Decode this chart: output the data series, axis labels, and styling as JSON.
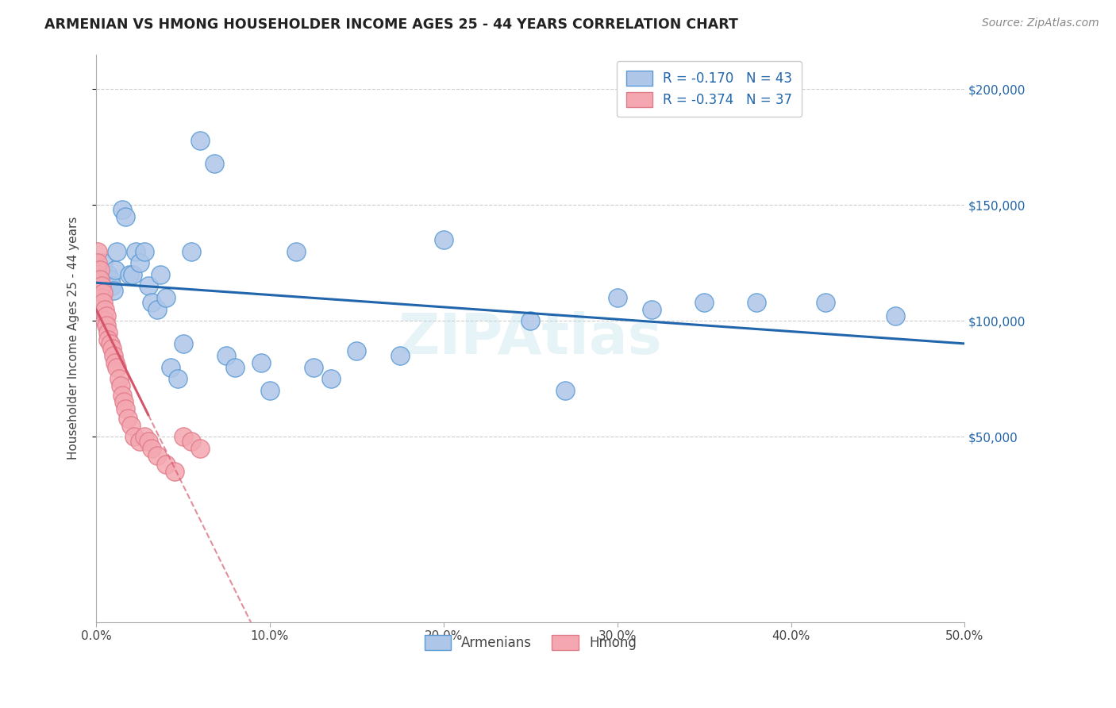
{
  "title": "ARMENIAN VS HMONG HOUSEHOLDER INCOME AGES 25 - 44 YEARS CORRELATION CHART",
  "source": "Source: ZipAtlas.com",
  "ylabel": "Householder Income Ages 25 - 44 years",
  "xlim": [
    0.0,
    0.5
  ],
  "ylim": [
    -30000,
    215000
  ],
  "yticks": [
    50000,
    100000,
    150000,
    200000
  ],
  "xticks": [
    0.0,
    0.1,
    0.2,
    0.3,
    0.4,
    0.5
  ],
  "xtick_labels": [
    "0.0%",
    "10.0%",
    "20.0%",
    "30.0%",
    "40.0%",
    "50.0%"
  ],
  "ytick_labels": [
    "$50,000",
    "$100,000",
    "$150,000",
    "$200,000"
  ],
  "armenian_color": "#aec6e8",
  "hmong_color": "#f4a7b0",
  "armenian_edge": "#5b9bd5",
  "hmong_edge": "#e07b8a",
  "blue_line_color": "#2166ac",
  "pink_line_color": "#d6546a",
  "R_armenian": -0.17,
  "N_armenian": 43,
  "R_hmong": -0.374,
  "N_hmong": 37,
  "armenian_x": [
    0.004,
    0.007,
    0.008,
    0.009,
    0.01,
    0.011,
    0.012,
    0.015,
    0.017,
    0.019,
    0.021,
    0.023,
    0.025,
    0.028,
    0.03,
    0.032,
    0.035,
    0.037,
    0.04,
    0.043,
    0.047,
    0.05,
    0.055,
    0.06,
    0.068,
    0.075,
    0.08,
    0.095,
    0.1,
    0.115,
    0.125,
    0.135,
    0.15,
    0.175,
    0.2,
    0.25,
    0.27,
    0.3,
    0.32,
    0.35,
    0.38,
    0.42,
    0.46
  ],
  "armenian_y": [
    125000,
    120000,
    118000,
    115000,
    113000,
    122000,
    130000,
    148000,
    145000,
    120000,
    120000,
    130000,
    125000,
    130000,
    115000,
    108000,
    105000,
    120000,
    110000,
    80000,
    75000,
    90000,
    130000,
    178000,
    168000,
    85000,
    80000,
    82000,
    70000,
    130000,
    80000,
    75000,
    87000,
    85000,
    135000,
    100000,
    70000,
    110000,
    105000,
    108000,
    108000,
    108000,
    102000
  ],
  "hmong_x": [
    0.001,
    0.001,
    0.002,
    0.002,
    0.003,
    0.003,
    0.004,
    0.004,
    0.005,
    0.005,
    0.006,
    0.006,
    0.007,
    0.007,
    0.008,
    0.009,
    0.01,
    0.011,
    0.012,
    0.013,
    0.014,
    0.015,
    0.016,
    0.017,
    0.018,
    0.02,
    0.022,
    0.025,
    0.028,
    0.03,
    0.032,
    0.035,
    0.04,
    0.045,
    0.05,
    0.055,
    0.06
  ],
  "hmong_y": [
    130000,
    125000,
    122000,
    118000,
    115000,
    110000,
    112000,
    108000,
    105000,
    100000,
    102000,
    98000,
    95000,
    92000,
    90000,
    88000,
    85000,
    82000,
    80000,
    75000,
    72000,
    68000,
    65000,
    62000,
    58000,
    55000,
    50000,
    48000,
    50000,
    48000,
    45000,
    42000,
    38000,
    35000,
    50000,
    48000,
    45000
  ],
  "watermark": "ZIPAtlas",
  "background_color": "#ffffff",
  "grid_color": "#c8c8c8"
}
